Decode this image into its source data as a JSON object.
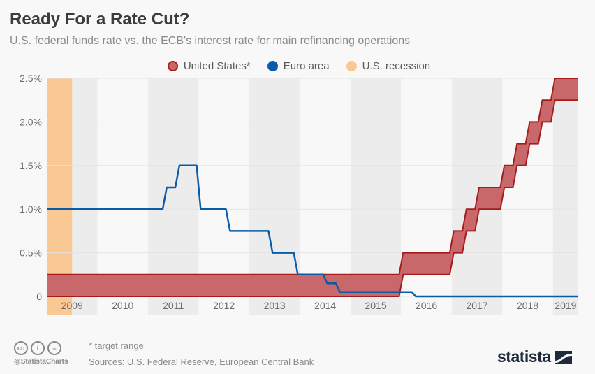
{
  "header": {
    "title": "Ready For a Rate Cut?",
    "subtitle": "U.S. federal funds rate vs. the ECB's interest rate for main refinancing operations"
  },
  "legend": [
    {
      "label": "United States*",
      "color": "#c9686a",
      "border": "#a51c1f"
    },
    {
      "label": "Euro area",
      "color": "#0b5ca8",
      "border": "#0b5ca8"
    },
    {
      "label": "U.S. recession",
      "color": "#f9c893",
      "border": "#f9c893"
    }
  ],
  "footer": {
    "note": "* target range",
    "sources": "Sources: U.S. Federal Reserve, European Central Bank",
    "handle": "@StatistaCharts",
    "license_icons": [
      "cc-icon",
      "attribution-icon",
      "no-derivatives-icon"
    ],
    "license_glyphs": [
      "cc",
      "i",
      "="
    ],
    "brand": "statista"
  },
  "colors": {
    "us_fill": "#c9686a",
    "us_stroke": "#a51c1f",
    "euro_line": "#0b5ca8",
    "recession": "#f9c893",
    "band_gray": "#ececec",
    "band_white": "#f8f8f8",
    "grid": "#e4e4e4"
  },
  "chart_data": {
    "type": "area",
    "title": "Ready For a Rate Cut?",
    "subtitle": "U.S. federal funds rate vs. the ECB's interest rate for main refinancing operations",
    "xlabel": "",
    "ylabel": "",
    "xlim": [
      2009.0,
      2019.5
    ],
    "ylim": [
      0,
      2.5
    ],
    "y_ticks": [
      0,
      0.5,
      1.0,
      1.5,
      2.0,
      2.5
    ],
    "y_tick_labels": [
      "0",
      "0.5%",
      "1.0%",
      "1.5%",
      "2.0%",
      "2.5%"
    ],
    "x_ticks": [
      2009,
      2010,
      2011,
      2012,
      2013,
      2014,
      2015,
      2016,
      2017,
      2018,
      2019
    ],
    "x_tick_labels": [
      "2009",
      "2010",
      "2011",
      "2012",
      "2013",
      "2014",
      "2015",
      "2016",
      "2017",
      "2018",
      "2019"
    ],
    "grid": true,
    "legend_position": "top-center",
    "recession": [
      [
        2009.0,
        2009.5
      ]
    ],
    "series": [
      {
        "name": "United States*",
        "kind": "range",
        "note": "target range (lower, upper) in %",
        "steps": [
          {
            "from": 2009.0,
            "lower": 0.0,
            "upper": 0.25
          },
          {
            "from": 2015.96,
            "lower": 0.25,
            "upper": 0.5
          },
          {
            "from": 2016.96,
            "lower": 0.5,
            "upper": 0.75
          },
          {
            "from": 2017.21,
            "lower": 0.75,
            "upper": 1.0
          },
          {
            "from": 2017.46,
            "lower": 1.0,
            "upper": 1.25
          },
          {
            "from": 2017.96,
            "lower": 1.25,
            "upper": 1.5
          },
          {
            "from": 2018.21,
            "lower": 1.5,
            "upper": 1.75
          },
          {
            "from": 2018.46,
            "lower": 1.75,
            "upper": 2.0
          },
          {
            "from": 2018.71,
            "lower": 2.0,
            "upper": 2.25
          },
          {
            "from": 2018.96,
            "lower": 2.25,
            "upper": 2.5
          }
        ],
        "end": 2019.5
      },
      {
        "name": "Euro area",
        "kind": "step-line",
        "note": "rate in %",
        "steps": [
          {
            "from": 2009.0,
            "value": 1.0
          },
          {
            "from": 2011.29,
            "value": 1.25
          },
          {
            "from": 2011.54,
            "value": 1.5
          },
          {
            "from": 2011.96,
            "value": 1.0
          },
          {
            "from": 2012.54,
            "value": 0.75
          },
          {
            "from": 2013.38,
            "value": 0.5
          },
          {
            "from": 2013.88,
            "value": 0.25
          },
          {
            "from": 2014.46,
            "value": 0.15
          },
          {
            "from": 2014.71,
            "value": 0.05
          },
          {
            "from": 2016.21,
            "value": 0.0
          }
        ],
        "end": 2019.5
      }
    ]
  }
}
